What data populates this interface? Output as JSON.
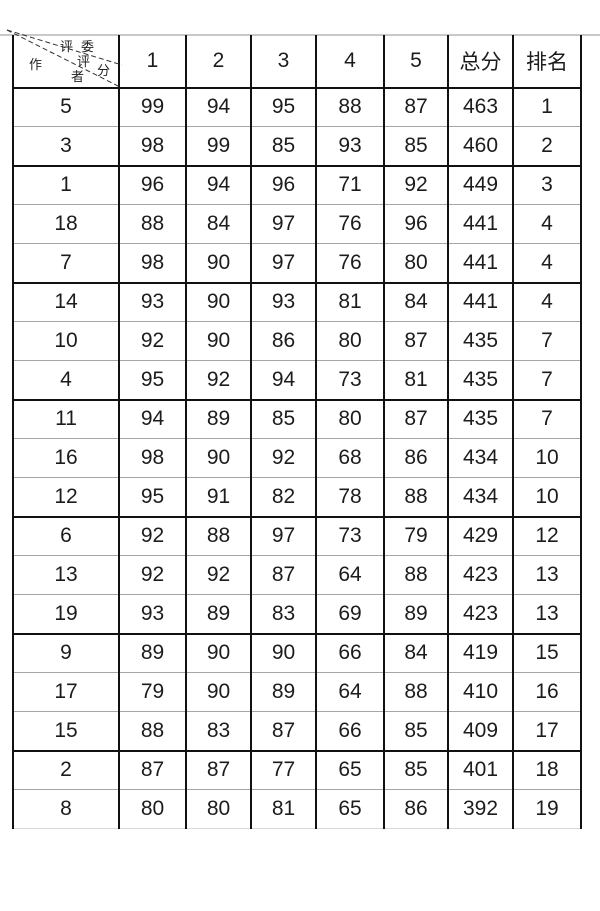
{
  "page": {
    "background": "#ffffff",
    "top_rule_color": "#c9c9c9"
  },
  "table": {
    "corner": {
      "judges_label": "评委",
      "score_char_1": "评",
      "score_char_2": "分",
      "author_char_1": "作",
      "author_char_2": "者"
    },
    "columns": [
      "1",
      "2",
      "3",
      "4",
      "5",
      "总分",
      "排名"
    ],
    "rows": [
      {
        "author": "5",
        "scores": [
          "99",
          "94",
          "95",
          "88",
          "87"
        ],
        "total": "463",
        "rank": "1"
      },
      {
        "author": "3",
        "scores": [
          "98",
          "99",
          "85",
          "93",
          "85"
        ],
        "total": "460",
        "rank": "2"
      },
      {
        "author": "1",
        "scores": [
          "96",
          "94",
          "96",
          "71",
          "92"
        ],
        "total": "449",
        "rank": "3"
      },
      {
        "author": "18",
        "scores": [
          "88",
          "84",
          "97",
          "76",
          "96"
        ],
        "total": "441",
        "rank": "4"
      },
      {
        "author": "7",
        "scores": [
          "98",
          "90",
          "97",
          "76",
          "80"
        ],
        "total": "441",
        "rank": "4"
      },
      {
        "author": "14",
        "scores": [
          "93",
          "90",
          "93",
          "81",
          "84"
        ],
        "total": "441",
        "rank": "4"
      },
      {
        "author": "10",
        "scores": [
          "92",
          "90",
          "86",
          "80",
          "87"
        ],
        "total": "435",
        "rank": "7"
      },
      {
        "author": "4",
        "scores": [
          "95",
          "92",
          "94",
          "73",
          "81"
        ],
        "total": "435",
        "rank": "7"
      },
      {
        "author": "11",
        "scores": [
          "94",
          "89",
          "85",
          "80",
          "87"
        ],
        "total": "435",
        "rank": "7"
      },
      {
        "author": "16",
        "scores": [
          "98",
          "90",
          "92",
          "68",
          "86"
        ],
        "total": "434",
        "rank": "10"
      },
      {
        "author": "12",
        "scores": [
          "95",
          "91",
          "82",
          "78",
          "88"
        ],
        "total": "434",
        "rank": "10"
      },
      {
        "author": "6",
        "scores": [
          "92",
          "88",
          "97",
          "73",
          "79"
        ],
        "total": "429",
        "rank": "12"
      },
      {
        "author": "13",
        "scores": [
          "92",
          "92",
          "87",
          "64",
          "88"
        ],
        "total": "423",
        "rank": "13"
      },
      {
        "author": "19",
        "scores": [
          "93",
          "89",
          "83",
          "69",
          "89"
        ],
        "total": "423",
        "rank": "13"
      },
      {
        "author": "9",
        "scores": [
          "89",
          "90",
          "90",
          "66",
          "84"
        ],
        "total": "419",
        "rank": "15"
      },
      {
        "author": "17",
        "scores": [
          "79",
          "90",
          "89",
          "64",
          "88"
        ],
        "total": "410",
        "rank": "16"
      },
      {
        "author": "15",
        "scores": [
          "88",
          "83",
          "87",
          "66",
          "85"
        ],
        "total": "409",
        "rank": "17"
      },
      {
        "author": "2",
        "scores": [
          "87",
          "87",
          "77",
          "65",
          "85"
        ],
        "total": "401",
        "rank": "18"
      },
      {
        "author": "8",
        "scores": [
          "80",
          "80",
          "81",
          "65",
          "86"
        ],
        "total": "392",
        "rank": "19"
      }
    ],
    "thick_border_after_row_indexes": [
      1,
      4,
      7,
      10,
      13,
      16
    ],
    "grid": {
      "vertical_color": "#111111",
      "thin_horizontal_color": "#a6a6a6",
      "thick_horizontal_color": "#111111"
    }
  }
}
